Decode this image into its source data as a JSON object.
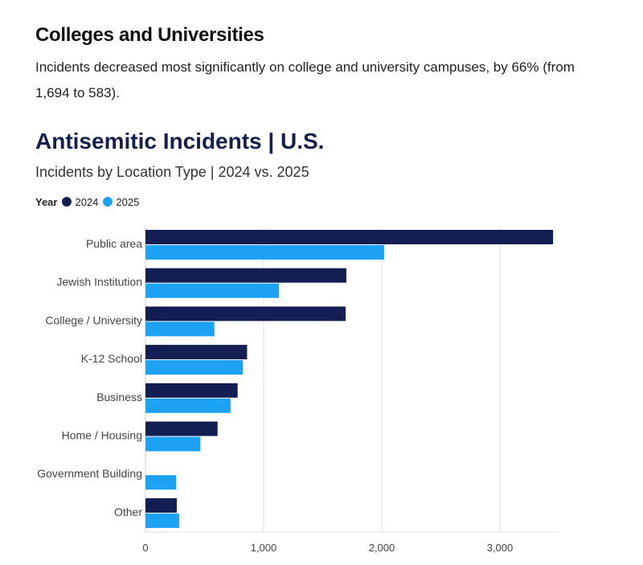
{
  "intro": {
    "heading": "Colleges and Universities",
    "text": "Incidents decreased most significantly on college and university campuses, by 66% (from 1,694 to 583)."
  },
  "legend": {
    "title": "Year",
    "items": [
      {
        "label": "2024",
        "color": "#131f52"
      },
      {
        "label": "2025",
        "color": "#1da1f2"
      }
    ]
  },
  "chart_data": {
    "type": "bar",
    "orientation": "horizontal",
    "title": "Antisemitic Incidents | U.S.",
    "subtitle": "Incidents by Location Type | 2024 vs. 2025",
    "categories": [
      "Public area",
      "Jewish Institution",
      "College / University",
      "K-12 School",
      "Business",
      "Home / Housing",
      "Government Building",
      "Other"
    ],
    "series": [
      {
        "name": "2024",
        "color": "#131f52",
        "values": [
          3450,
          1700,
          1694,
          860,
          780,
          610,
          null,
          265
        ]
      },
      {
        "name": "2025",
        "color": "#1da1f2",
        "values": [
          2020,
          1130,
          583,
          825,
          720,
          465,
          260,
          285
        ]
      }
    ],
    "xlim": [
      0,
      3500
    ],
    "xticks": [
      0,
      1000,
      2000,
      3000
    ],
    "xtick_labels": [
      "0",
      "1,000",
      "2,000",
      "3,000"
    ],
    "grid": true,
    "legend_position": "top-left"
  }
}
